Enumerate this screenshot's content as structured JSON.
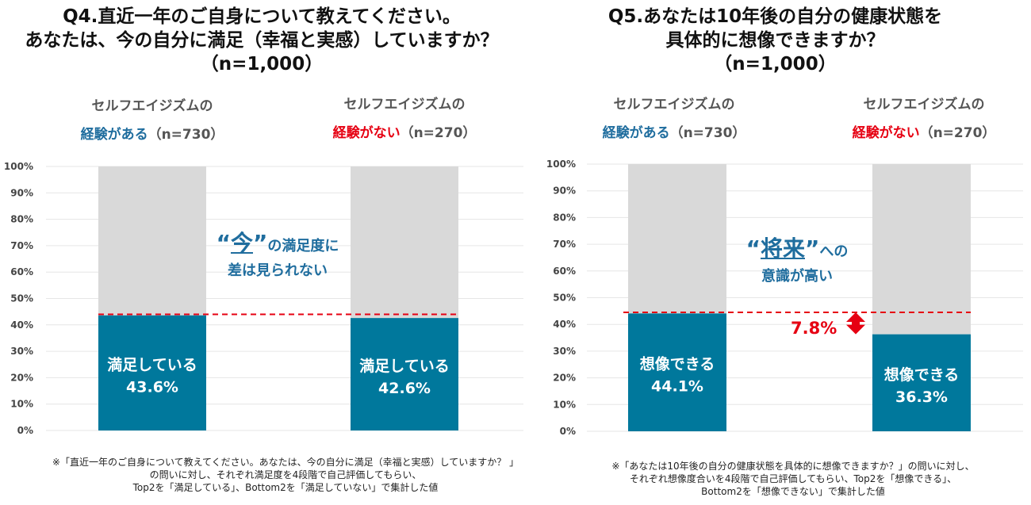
{
  "q4": {
    "title_lines": [
      "Q4.直近一年のご自身について教えてください。",
      "あなたは、今の自分に満足（幸福と実感）していますか？",
      "（n=1,000）"
    ],
    "callout": {
      "quote_open": "“",
      "emphasis": "今",
      "quote_close": "”",
      "rest": "の満足度に",
      "line2": "差は見られない"
    },
    "note_lines": [
      "※「直近一年のご自身について教えてください。あなたは、今の自分に満足（幸福と実感）していますか？ 」",
      "の問いに対し、それぞれ満足度を4段階で自己評価してもらい、",
      "Top2を「満足している」、Bottom2を「満足していない」で集計した値"
    ]
  },
  "q5": {
    "title_lines": [
      "Q5.あなたは10年後の自分の健康状態を",
      "具体的に想像できますか？",
      "（n=1,000）"
    ],
    "callout": {
      "quote_open": "“",
      "emphasis": "将来",
      "quote_close": "”",
      "rest": "への",
      "line2": "意識が高い"
    },
    "difference_label": "7.8%",
    "note_lines": [
      "※「あなたは10年後の自分の健康状態を具体的に想像できますか？」の問いに対し、",
      "それぞれ想像度合いを4段階で自己評価してもらい、Top2を「想像できる」、",
      "Bottom2を「想像できない」で集計した値"
    ]
  },
  "colors": {
    "bar": "#00789c",
    "bar_rest": "#d9d9d9",
    "accent_blue": "#1f6d9e",
    "accent_red": "#e60012",
    "dashed_line": "#e60012"
  },
  "chart_data": [
    {
      "type": "bar",
      "title": "Q4.直近一年のご自身について教えてください。あなたは、今の自分に満足（幸福と実感）していますか？",
      "ylim": [
        0,
        100
      ],
      "y_ticks": [
        "0%",
        "10%",
        "20%",
        "30%",
        "40%",
        "50%",
        "60%",
        "70%",
        "80%",
        "90%",
        "100%"
      ],
      "reference_line": 44,
      "categories": [
        {
          "label_prefix": "セルフエイジズムの",
          "label_highlight": "経験がある",
          "label_n": "（n=730）",
          "highlight": "blue"
        },
        {
          "label_prefix": "セルフエイジズムの",
          "label_highlight": "経験がない",
          "label_n": "（n=270）",
          "highlight": "red"
        }
      ],
      "series": [
        {
          "name": "満足している",
          "values": [
            43.6,
            42.6
          ],
          "value_labels": [
            "43.6%",
            "42.6%"
          ]
        }
      ]
    },
    {
      "type": "bar",
      "title": "Q5.あなたは10年後の自分の健康状態を具体的に想像できますか？",
      "ylim": [
        0,
        100
      ],
      "y_ticks": [
        "0%",
        "10%",
        "20%",
        "30%",
        "40%",
        "50%",
        "60%",
        "70%",
        "80%",
        "90%",
        "100%"
      ],
      "reference_line": 44.5,
      "categories": [
        {
          "label_prefix": "セルフエイジズムの",
          "label_highlight": "経験がある",
          "label_n": "（n=730）",
          "highlight": "blue"
        },
        {
          "label_prefix": "セルフエイジズムの",
          "label_highlight": "経験がない",
          "label_n": "（n=270）",
          "highlight": "red"
        }
      ],
      "series": [
        {
          "name": "想像できる",
          "values": [
            44.1,
            36.3
          ],
          "value_labels": [
            "44.1%",
            "36.3%"
          ]
        }
      ]
    }
  ]
}
